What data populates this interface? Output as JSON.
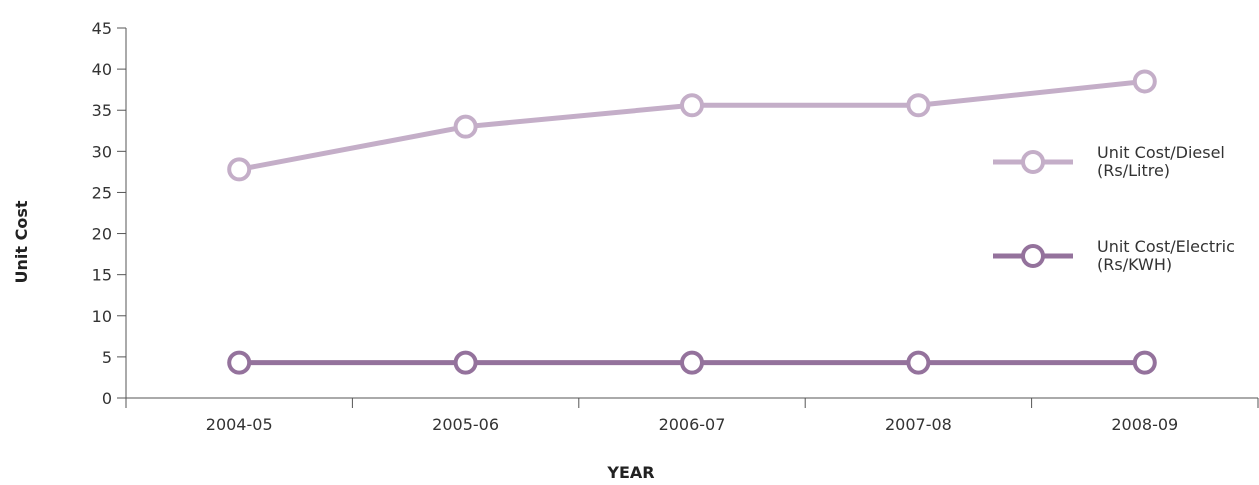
{
  "chart_data": {
    "type": "line",
    "categories": [
      "2004-05",
      "2005-06",
      "2006-07",
      "2007-08",
      "2008-09"
    ],
    "series": [
      {
        "name_lines": [
          "Unit Cost/Diesel",
          "(Rs/Litre)"
        ],
        "values": [
          27.8,
          33.0,
          35.6,
          35.6,
          38.5
        ],
        "color": "#c4aec8"
      },
      {
        "name_lines": [
          "Unit Cost/Electric",
          "(Rs/KWH)"
        ],
        "values": [
          4.3,
          4.3,
          4.3,
          4.3,
          4.3
        ],
        "color": "#94729c"
      }
    ],
    "xlabel": "YEAR",
    "ylabel": "Unit Cost",
    "ylim": [
      0,
      45
    ],
    "yticks": [
      "0",
      "5",
      "10",
      "15",
      "20",
      "25",
      "30",
      "35",
      "40",
      "45"
    ],
    "grid": false,
    "legend_position": "right"
  }
}
